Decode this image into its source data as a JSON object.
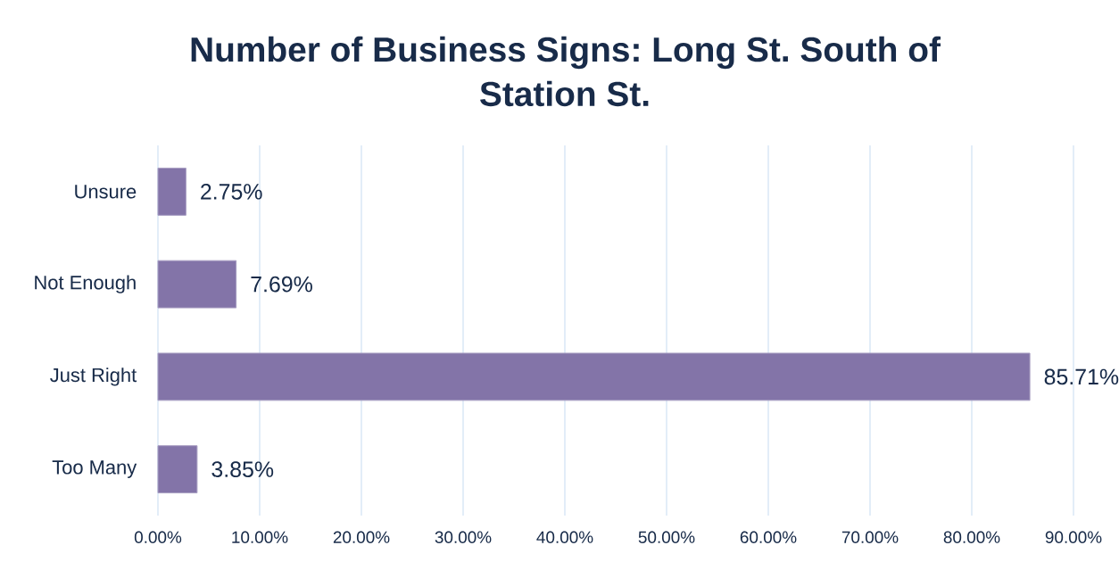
{
  "chart_data": {
    "type": "bar",
    "orientation": "horizontal",
    "title": "Number of Business Signs: Long St. South of Station St.",
    "categories": [
      "Unsure",
      "Not Enough",
      "Just Right",
      "Too Many"
    ],
    "values": [
      2.75,
      7.69,
      85.71,
      3.85
    ],
    "color": "#8374a8",
    "value_labels": [
      "2.75%",
      "7.69%",
      "85.71%",
      "3.85%"
    ],
    "xlim": [
      0,
      90
    ],
    "xticks": [
      {
        "value": 0,
        "label": "0.00%"
      },
      {
        "value": 10,
        "label": "10.00%"
      },
      {
        "value": 20,
        "label": "20.00%"
      },
      {
        "value": 30,
        "label": "30.00%"
      },
      {
        "value": 40,
        "label": "40.00%"
      },
      {
        "value": 50,
        "label": "50.00%"
      },
      {
        "value": 60,
        "label": "60.00%"
      },
      {
        "value": 70,
        "label": "70.00%"
      },
      {
        "value": 80,
        "label": "80.00%"
      },
      {
        "value": 90,
        "label": "90.00%"
      }
    ],
    "grid": "x"
  }
}
